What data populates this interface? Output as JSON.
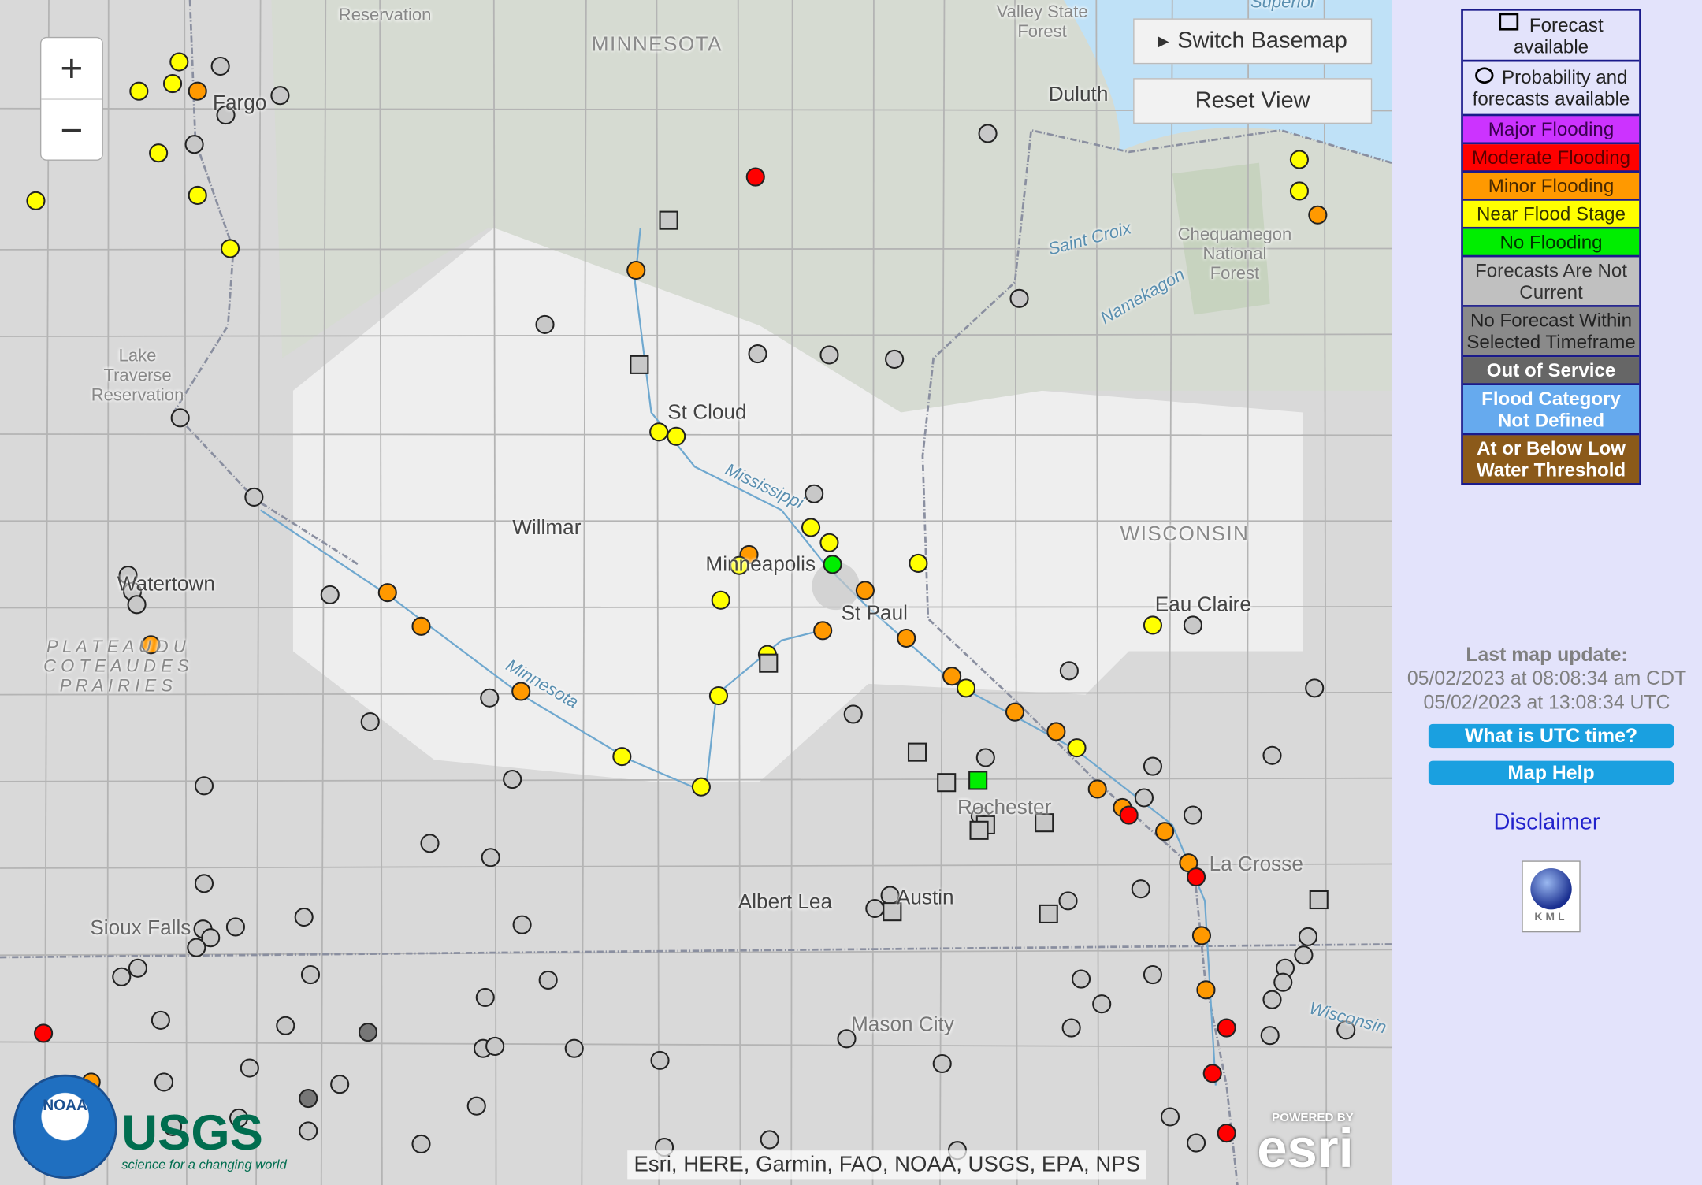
{
  "map": {
    "zoom_in": "+",
    "zoom_out": "−",
    "switch_basemap": "Switch Basemap",
    "reset_view": "Reset View",
    "attribution": "Esri, HERE, Garmin, FAO, NOAA, USGS, EPA, NPS",
    "labels": {
      "minnesota": "MINNESOTA",
      "wisconsin": "WISCONSIN",
      "fargo": "Fargo",
      "duluth": "Duluth",
      "superior": "Superior",
      "valley": "Valley State",
      "forest": "Forest",
      "reservation": "Reservation",
      "lake": "Lake",
      "traverse": "Traverse",
      "reservation2": "Reservation",
      "stcloud": "St Cloud",
      "mississippi": "Mississippi",
      "willmar": "Willmar",
      "minneapolis": "Minneapolis",
      "stpaul": "St Paul",
      "watertown": "Watertown",
      "plateau1": "P L A T E A U   D U",
      "plateau2": "C O T E A U   D E S",
      "plateau3": "P R A I R I E S",
      "minnesota_river": "Minnesota",
      "eauclaire": "Eau Claire",
      "saintcroix": "Saint Croix",
      "namekagon": "Namekagon",
      "cheq1": "Chequamegon",
      "cheq2": "National",
      "cheq3": "Forest",
      "rochester": "Rochester",
      "lacrosse": "La Crosse",
      "albertlea": "Albert Lea",
      "austin": "Austin",
      "siouxfalls": "Sioux Falls",
      "masoncity": "Mason City",
      "wisconsin_river": "Wisconsin"
    },
    "logos": {
      "noaa": "NOAA",
      "usgs": "USGS",
      "usgs_tag": "science for a changing world",
      "esri_powered": "POWERED BY",
      "esri": "esri"
    }
  },
  "legend": {
    "forecast_available": "Forecast available",
    "probability": "Probability and forecasts available",
    "categories": [
      {
        "label": "Major Flooding",
        "color": "#cc33ff",
        "text": "#3a0050"
      },
      {
        "label": "Moderate Flooding",
        "color": "#ff0000",
        "text": "#5a0000"
      },
      {
        "label": "Minor Flooding",
        "color": "#ff9900",
        "text": "#4a2a00"
      },
      {
        "label": "Near Flood Stage",
        "color": "#ffff00",
        "text": "#333300"
      },
      {
        "label": "No Flooding",
        "color": "#00ee00",
        "text": "#003300"
      },
      {
        "label": "Forecasts Are Not Current",
        "color": "#c0c0c0",
        "text": "#333333"
      },
      {
        "label": "No Forecast Within Selected Timeframe",
        "color": "#8a8a8a",
        "text": "#222222"
      },
      {
        "label": "Out of Service",
        "color": "#666666",
        "text": "#ffffff"
      },
      {
        "label": "Flood Category Not Defined",
        "color": "#66aaee",
        "text": "#ffffff"
      },
      {
        "label": "At or Below Low Water Threshold",
        "color": "#8b5a1a",
        "text": "#ffffff"
      }
    ]
  },
  "sidebar": {
    "last_update_label": "Last map update:",
    "update_local": "05/02/2023 at 08:08:34 am CDT",
    "update_utc": "05/02/2023 at 13:08:34 UTC",
    "utc_button": "What is UTC time?",
    "help_button": "Map Help",
    "disclaimer": "Disclaimer",
    "kml": "KML"
  },
  "marker_colors": {
    "y": "#ffff00",
    "o": "#ff9900",
    "r": "#ff0000",
    "g": "#c8c8c8",
    "G": "#00ee00",
    "d": "#777777",
    "s": "#c8c8c8",
    "S": "#00ee00"
  }
}
